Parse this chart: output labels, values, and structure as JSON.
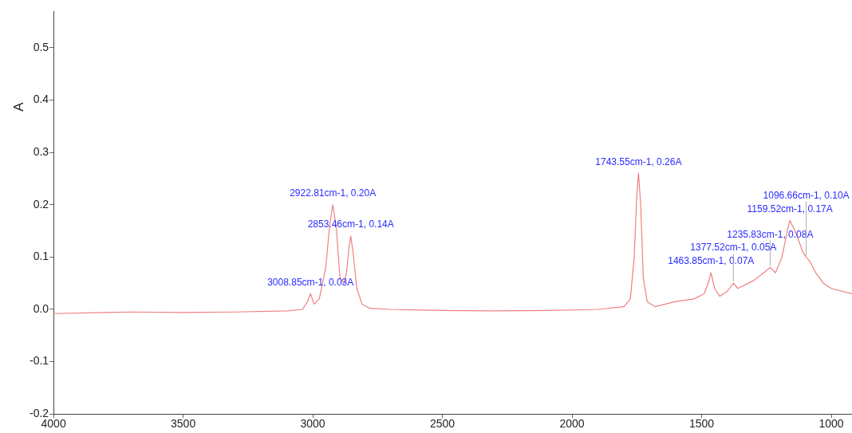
{
  "chart_data": {
    "type": "line",
    "ylabel": "A",
    "legend": false,
    "grid": false,
    "marker": "none",
    "line_style": "solid",
    "xlim": [
      4000,
      920
    ],
    "xticks": [
      4000,
      3500,
      3000,
      2500,
      2000,
      1500,
      1000
    ],
    "ylim": [
      -0.2,
      0.57
    ],
    "yticks": [
      {
        "value": -0.2,
        "label": "-0.2"
      },
      {
        "value": -0.1,
        "label": "-0.1"
      },
      {
        "value": 0,
        "label": "0.0"
      },
      {
        "value": 0.1,
        "label": "0.1"
      },
      {
        "value": 0.2,
        "label": "0.2"
      },
      {
        "value": 0.3,
        "label": "0.3"
      },
      {
        "value": 0.4,
        "label": "0.4"
      },
      {
        "value": 0.5,
        "label": "0.5"
      }
    ],
    "series": [
      {
        "color": "#f08080",
        "x": [
          4000,
          3800,
          3700,
          3500,
          3300,
          3100,
          3040,
          3020,
          3008.85,
          2995,
          2975,
          2950,
          2935,
          2922.81,
          2910,
          2895,
          2880,
          2870,
          2860,
          2853.46,
          2845,
          2830,
          2810,
          2780,
          2700,
          2500,
          2300,
          2100,
          1900,
          1800,
          1775,
          1760,
          1750,
          1743.55,
          1735,
          1725,
          1710,
          1680,
          1600,
          1530,
          1490,
          1475,
          1463.85,
          1450,
          1430,
          1400,
          1377.52,
          1360,
          1300,
          1260,
          1235.83,
          1215,
          1190,
          1170,
          1159.52,
          1140,
          1110,
          1096.66,
          1080,
          1060,
          1030,
          1000,
          920
        ],
        "values": [
          -0.008,
          -0.006,
          -0.005,
          -0.006,
          -0.005,
          -0.003,
          0.0,
          0.015,
          0.03,
          0.01,
          0.02,
          0.08,
          0.16,
          0.2,
          0.16,
          0.06,
          0.05,
          0.07,
          0.12,
          0.14,
          0.11,
          0.04,
          0.01,
          0.002,
          0.0,
          -0.002,
          -0.003,
          -0.002,
          0.0,
          0.005,
          0.02,
          0.1,
          0.22,
          0.26,
          0.2,
          0.06,
          0.015,
          0.005,
          0.015,
          0.02,
          0.03,
          0.05,
          0.07,
          0.04,
          0.025,
          0.035,
          0.05,
          0.04,
          0.055,
          0.07,
          0.08,
          0.07,
          0.1,
          0.15,
          0.17,
          0.15,
          0.11,
          0.1,
          0.09,
          0.07,
          0.05,
          0.04,
          0.03
        ]
      }
    ],
    "annotations": [
      {
        "text": "3008.85cm-1, 0.03A",
        "x": 3008.85,
        "y": 0.03
      },
      {
        "text": "2922.81cm-1, 0.20A",
        "x": 2922.81,
        "y": 0.2
      },
      {
        "text": "2853.46cm-1, 0.14A",
        "x": 2853.46,
        "y": 0.14
      },
      {
        "text": "1743.55cm-1, 0.26A",
        "x": 1743.55,
        "y": 0.26
      },
      {
        "text": "1463.85cm-1, 0.07A",
        "x": 1463.85,
        "y": 0.07
      },
      {
        "text": "1377.52cm-1, 0.05A",
        "x": 1377.52,
        "y": 0.05
      },
      {
        "text": "1235.83cm-1, 0.08A",
        "x": 1235.83,
        "y": 0.08
      },
      {
        "text": "1159.52cm-1, 0.17A",
        "x": 1159.52,
        "y": 0.17
      },
      {
        "text": "1096.66cm-1, 0.10A",
        "x": 1096.66,
        "y": 0.1
      }
    ]
  }
}
